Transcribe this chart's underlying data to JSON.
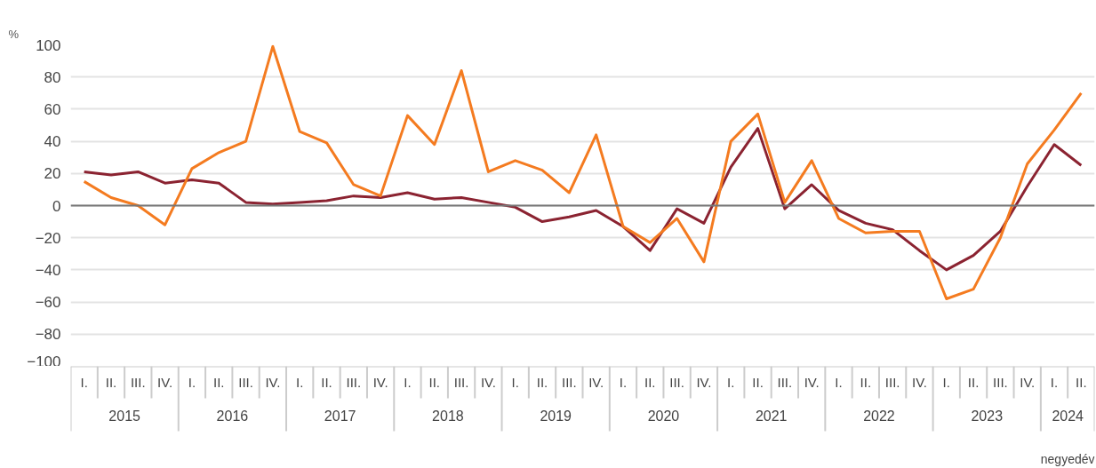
{
  "chart_data": {
    "type": "line",
    "ylabel": "%",
    "xlabel": "negyedév",
    "categories": [
      "I.",
      "II.",
      "III.",
      "IV.",
      "I.",
      "II.",
      "III.",
      "IV.",
      "I.",
      "II.",
      "III.",
      "IV.",
      "I.",
      "II.",
      "III.",
      "IV.",
      "I.",
      "II.",
      "III.",
      "IV.",
      "I.",
      "II.",
      "III.",
      "IV.",
      "I.",
      "II.",
      "III.",
      "IV.",
      "I.",
      "II.",
      "III.",
      "IV.",
      "I.",
      "II.",
      "III.",
      "IV.",
      "I.",
      "II."
    ],
    "annotations": [
      "2015",
      "2016",
      "2017",
      "2018",
      "2019",
      "2020",
      "2021",
      "2022",
      "2023",
      "2024"
    ],
    "series": [
      {
        "color": "#8b2331",
        "values": [
          21,
          19,
          21,
          14,
          16,
          14,
          2,
          1,
          2,
          3,
          6,
          5,
          8,
          4,
          5,
          2,
          -1,
          -10,
          -7,
          -3,
          -13,
          -28,
          -2,
          -11,
          24,
          48,
          -2,
          13,
          -3,
          -11,
          -15,
          -28,
          -40,
          -31,
          -16,
          12,
          38,
          25
        ]
      },
      {
        "color": "#f47b20",
        "values": [
          15,
          5,
          0,
          -12,
          23,
          33,
          40,
          99,
          46,
          39,
          13,
          6,
          56,
          38,
          84,
          21,
          28,
          22,
          8,
          44,
          -13,
          -23,
          -8,
          -35,
          40,
          57,
          2,
          28,
          -8,
          -17,
          -16,
          -16,
          -58,
          -52,
          -20,
          26,
          47,
          70
        ]
      }
    ],
    "ylim": [
      -100,
      100
    ],
    "yticks": [
      -100,
      -80,
      -60,
      -40,
      -20,
      0,
      20,
      40,
      60,
      80,
      100
    ],
    "grid": "y",
    "marker": "none",
    "line_style": "solid",
    "ref_lines": [
      {
        "axis": "y",
        "value": 0,
        "color": "#777777"
      }
    ]
  }
}
